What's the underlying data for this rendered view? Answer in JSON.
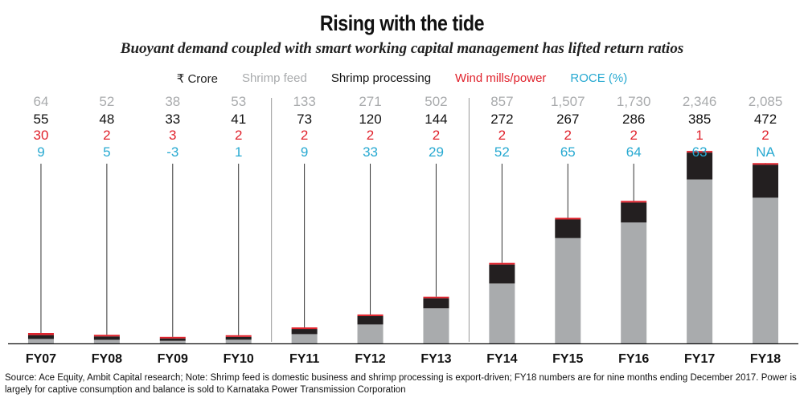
{
  "title": "Rising with the tide",
  "subtitle": "Buoyant demand coupled with smart working capital management has lifted return ratios",
  "legend": {
    "unit": "₹ Crore",
    "shrimp_feed": "Shrimp feed",
    "shrimp_processing": "Shrimp processing",
    "wind_power": "Wind mills/power",
    "roce": "ROCE (%)"
  },
  "colors": {
    "shrimp_feed": "#a9abad",
    "shrimp_processing": "#231f20",
    "wind_power": "#e0212b",
    "roce": "#27a9d1"
  },
  "chart_data": {
    "type": "bar",
    "stacked": true,
    "categories": [
      "FY07",
      "FY08",
      "FY09",
      "FY10",
      "FY11",
      "FY12",
      "FY13",
      "FY14",
      "FY15",
      "FY16",
      "FY17",
      "FY18"
    ],
    "series": [
      {
        "name": "Shrimp feed",
        "values": [
          64,
          52,
          38,
          53,
          133,
          271,
          502,
          857,
          1507,
          1730,
          2346,
          2085
        ]
      },
      {
        "name": "Shrimp processing",
        "values": [
          55,
          48,
          33,
          41,
          73,
          120,
          144,
          272,
          267,
          286,
          385,
          472
        ]
      },
      {
        "name": "Wind mills/power",
        "values": [
          30,
          2,
          3,
          2,
          2,
          2,
          2,
          2,
          2,
          2,
          1,
          2
        ]
      }
    ],
    "labels": {
      "shrimp_feed": [
        "64",
        "52",
        "38",
        "53",
        "133",
        "271",
        "502",
        "857",
        "1,507",
        "1,730",
        "2,346",
        "2,085"
      ],
      "shrimp_processing": [
        "55",
        "48",
        "33",
        "41",
        "73",
        "120",
        "144",
        "272",
        "267",
        "286",
        "385",
        "472"
      ],
      "wind_power": [
        "30",
        "2",
        "3",
        "2",
        "2",
        "2",
        "2",
        "2",
        "2",
        "2",
        "1",
        "2"
      ],
      "roce": [
        "9",
        "5",
        "-3",
        "1",
        "9",
        "33",
        "29",
        "52",
        "65",
        "64",
        "63",
        "NA"
      ]
    },
    "ylim": [
      0,
      2800
    ],
    "grid": false
  },
  "source": "Source: Ace Equity, Ambit Capital research; Note: Shrimp feed is domestic business and shrimp processing is export-driven; FY18 numbers are for nine months ending December 2017. Power is largely for  captive consumption and balance is sold to Karnataka Power Transmission Corporation"
}
